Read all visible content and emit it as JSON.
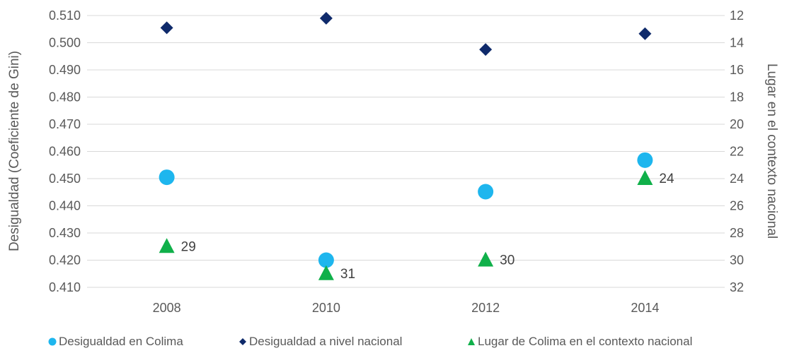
{
  "chart_data": {
    "type": "scatter",
    "x": [
      "2008",
      "2010",
      "2012",
      "2014"
    ],
    "yleft": {
      "label": "Desigualdad (Coeficiente de Gini)",
      "range": [
        0.41,
        0.51
      ],
      "ticks": [
        "0.510",
        "0.500",
        "0.490",
        "0.480",
        "0.470",
        "0.460",
        "0.450",
        "0.440",
        "0.430",
        "0.420",
        "0.410"
      ]
    },
    "yright": {
      "label": "Lugar en el contexto nacional",
      "range": [
        32,
        12
      ],
      "ticks": [
        "12",
        "14",
        "16",
        "18",
        "20",
        "22",
        "24",
        "26",
        "28",
        "30",
        "32"
      ]
    },
    "series": [
      {
        "name": "Desigualdad en Colima",
        "axis": "left",
        "marker": "circle",
        "color": "#1EB6EE",
        "values": [
          0.4505,
          0.42,
          0.4452,
          0.4568
        ]
      },
      {
        "name": "Desigualdad a nivel nacional",
        "axis": "left",
        "marker": "diamond",
        "color": "#0F2A6B",
        "values": [
          0.5055,
          0.509,
          0.4975,
          0.5033
        ]
      },
      {
        "name": "Lugar de Colima en el contexto nacional",
        "axis": "right",
        "marker": "triangle",
        "color": "#10B04A",
        "values": [
          29,
          31,
          30,
          24
        ],
        "labels": [
          "29",
          "31",
          "30",
          "24"
        ]
      }
    ],
    "grid": true,
    "legend": "bottom"
  }
}
